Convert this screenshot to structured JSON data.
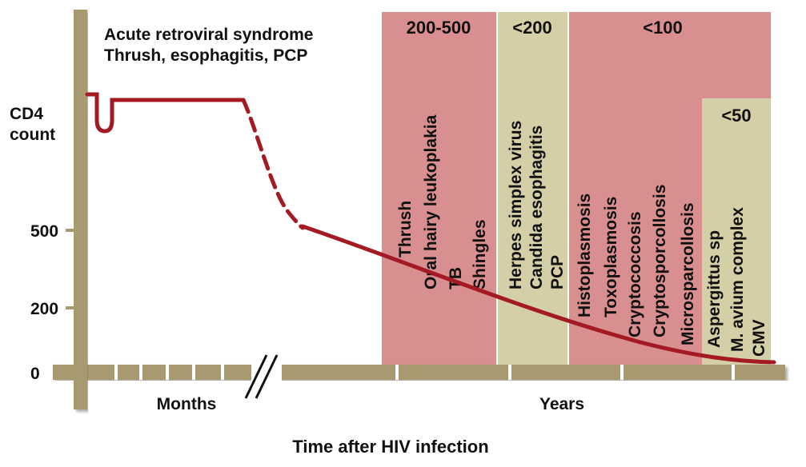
{
  "diagram": {
    "title_lines": [
      "Acute retroviral syndrome",
      "Thrush, esophagitis, PCP"
    ],
    "y_axis_label_lines": [
      "CD4",
      "count"
    ],
    "y_ticks": [
      "500",
      "200",
      "0"
    ],
    "x_segment_labels": {
      "months": "Months",
      "years": "Years"
    },
    "caption": "Time after HIV infection",
    "colors": {
      "axis": "#a89a70",
      "axis_dark": "#8c7f58",
      "curve": "#a31a22",
      "band_pink": "#d98e90",
      "band_tan": "#d4cfa7"
    },
    "bands": [
      {
        "threshold": "200-500",
        "color": "pink",
        "infections": [
          "Thrush",
          "Oral hairy leukoplakia",
          "TB",
          "Shingles"
        ]
      },
      {
        "threshold": "<200",
        "color": "tan",
        "infections": [
          "Herpes simplex virus",
          "Candida esophagitis",
          "PCP"
        ]
      },
      {
        "threshold": "<100",
        "color": "pink",
        "infections": [
          "Histoplasmosis",
          "Toxoplasmosis",
          "Cryptococcosis",
          "Cryptosporcollosis",
          "Microsparcollosis"
        ]
      },
      {
        "threshold": "<50",
        "color": "tan",
        "infections": [
          "Aspergittus sp",
          "M. avium complex",
          "CMV"
        ]
      }
    ]
  }
}
